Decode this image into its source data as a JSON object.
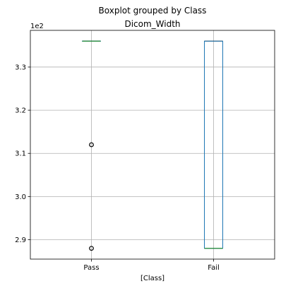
{
  "chart_data": {
    "type": "boxplot",
    "suptitle": "Boxplot grouped by Class",
    "title": "Dicom_Width",
    "xlabel": "[Class]",
    "ylabel": "",
    "y_scale_label": "1e2",
    "ylim": [
      2.855,
      3.385
    ],
    "yticks": [
      2.9,
      3.0,
      3.1,
      3.2,
      3.3
    ],
    "ytick_labels": [
      "2.9",
      "3.0",
      "3.1",
      "3.2",
      "3.3"
    ],
    "grid": true,
    "categories": [
      "Pass",
      "Fail"
    ],
    "boxes": [
      {
        "category": "Pass",
        "q1": 3.36,
        "median": 3.36,
        "q3": 3.36,
        "whisker_low": 3.36,
        "whisker_high": 3.36,
        "outliers": [
          3.12,
          2.88
        ]
      },
      {
        "category": "Fail",
        "q1": 2.88,
        "median": 2.88,
        "q3": 3.36,
        "whisker_low": 2.88,
        "whisker_high": 3.36,
        "outliers": []
      }
    ],
    "colors": {
      "box": "#1f77b4",
      "median": "#2ca02c",
      "whisker": "#000000",
      "grid": "#b0b0b0"
    }
  }
}
